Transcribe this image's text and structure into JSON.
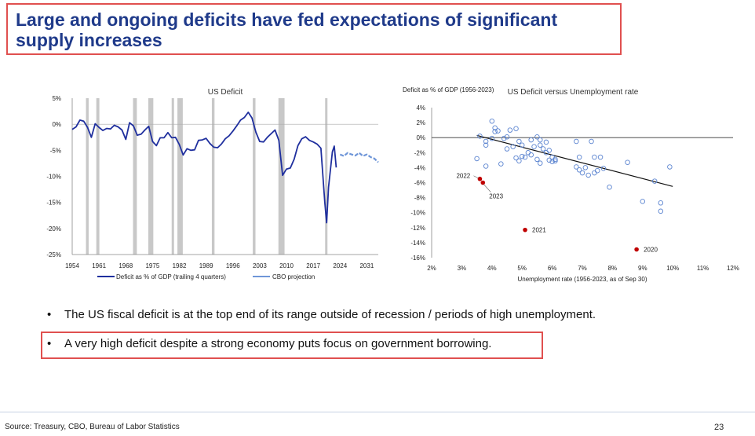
{
  "title": "Large and ongoing deficits have fed expectations of significant supply increases",
  "chart_data": [
    {
      "type": "line",
      "title": "US Deficit",
      "ylabel": "",
      "xlabel": "",
      "ylim": [
        -25,
        5
      ],
      "xlim": [
        1954,
        2034
      ],
      "yticks": [
        5,
        0,
        -5,
        -10,
        -15,
        -20,
        -25
      ],
      "yticklabels": [
        "5%",
        "0%",
        "-5%",
        "-10%",
        "-15%",
        "-20%",
        "-25%"
      ],
      "xticks": [
        1954,
        1961,
        1968,
        1975,
        1982,
        1989,
        1996,
        2003,
        2010,
        2017,
        2024,
        2031
      ],
      "xticklabels": [
        "1954",
        "1961",
        "1968",
        "1975",
        "1982",
        "1989",
        "1996",
        "2003",
        "2010",
        "2017",
        "2024",
        "2031"
      ],
      "recessions": [
        [
          1957.6,
          1958.3
        ],
        [
          1960.3,
          1961.1
        ],
        [
          1969.9,
          1970.9
        ],
        [
          1973.9,
          1975.2
        ],
        [
          1980.0,
          1980.6
        ],
        [
          1981.5,
          1982.9
        ],
        [
          1990.5,
          1991.2
        ],
        [
          2001.2,
          2001.9
        ],
        [
          2007.9,
          2009.5
        ],
        [
          2020.1,
          2020.4
        ]
      ],
      "series": [
        {
          "name": "Deficit as % of GDP (trailing 4 quarters)",
          "color": "#1f2f9e",
          "style": "solid",
          "x": [
            1954,
            1955,
            1956,
            1957,
            1958,
            1959,
            1960,
            1961,
            1962,
            1963,
            1964,
            1965,
            1966,
            1967,
            1968,
            1969,
            1970,
            1971,
            1972,
            1973,
            1974,
            1975,
            1976,
            1977,
            1978,
            1979,
            1980,
            1981,
            1982,
            1983,
            1984,
            1985,
            1986,
            1987,
            1988,
            1989,
            1990,
            1991,
            1992,
            1993,
            1994,
            1995,
            1996,
            1997,
            1998,
            1999,
            2000,
            2001,
            2002,
            2003,
            2004,
            2005,
            2006,
            2007,
            2008,
            2009,
            2010,
            2011,
            2012,
            2013,
            2014,
            2015,
            2016,
            2017,
            2018,
            2019,
            2020,
            2020.5,
            2021,
            2022,
            2022.5,
            2023
          ],
          "values": [
            -1.0,
            -0.5,
            0.8,
            0.6,
            -0.6,
            -2.5,
            0.1,
            -0.6,
            -1.2,
            -0.8,
            -0.9,
            -0.2,
            -0.5,
            -1.1,
            -2.9,
            0.3,
            -0.3,
            -2.1,
            -1.9,
            -1.1,
            -0.4,
            -3.3,
            -4.1,
            -2.6,
            -2.6,
            -1.6,
            -2.6,
            -2.5,
            -3.9,
            -5.9,
            -4.7,
            -5.0,
            -4.9,
            -3.1,
            -3.0,
            -2.7,
            -3.7,
            -4.4,
            -4.5,
            -3.8,
            -2.8,
            -2.2,
            -1.3,
            -0.3,
            0.8,
            1.3,
            2.3,
            1.2,
            -1.5,
            -3.3,
            -3.4,
            -2.5,
            -1.8,
            -1.1,
            -3.1,
            -9.8,
            -8.6,
            -8.4,
            -6.7,
            -4.1,
            -2.8,
            -2.4,
            -3.1,
            -3.4,
            -3.8,
            -4.6,
            -14.9,
            -18.9,
            -12.1,
            -5.3,
            -4.2,
            -8.3
          ]
        },
        {
          "name": "CBO projection",
          "color": "#6f96d8",
          "style": "dashed",
          "x": [
            2024,
            2025,
            2026,
            2027,
            2028,
            2029,
            2030,
            2031,
            2032,
            2033,
            2034
          ],
          "values": [
            -5.8,
            -6.1,
            -5.5,
            -5.8,
            -6.0,
            -5.5,
            -6.1,
            -5.8,
            -6.3,
            -6.6,
            -7.3
          ]
        }
      ],
      "legend": [
        "Deficit as % of GDP (trailing 4 quarters)",
        "CBO projection"
      ],
      "legend_position": "bottom"
    },
    {
      "type": "scatter",
      "title": "US Deficit versus Unemployment rate",
      "ylabel": "Deficit as % of GDP (1956-2023)",
      "xlabel": "Unemployment rate (1956-2023, as of Sep 30)",
      "xlim": [
        2,
        12
      ],
      "ylim": [
        -16,
        4
      ],
      "xticks": [
        2,
        3,
        4,
        5,
        6,
        7,
        8,
        9,
        10,
        11,
        12
      ],
      "xticklabels": [
        "2%",
        "3%",
        "4%",
        "5%",
        "6%",
        "7%",
        "8%",
        "9%",
        "10%",
        "11%",
        "12%"
      ],
      "yticks": [
        4,
        2,
        0,
        -2,
        -4,
        -6,
        -8,
        -10,
        -12,
        -14,
        -16
      ],
      "yticklabels": [
        "4%",
        "2%",
        "0%",
        "-2%",
        "-4%",
        "-6%",
        "-8%",
        "-10%",
        "-12%",
        "-14%",
        "-16%"
      ],
      "trendline": {
        "x": [
          3.5,
          10.0
        ],
        "y": [
          0.3,
          -6.5
        ]
      },
      "points": [
        {
          "x": 4.0,
          "y": 2.2
        },
        {
          "x": 4.1,
          "y": 1.3
        },
        {
          "x": 4.1,
          "y": 0.8
        },
        {
          "x": 4.2,
          "y": 0.9
        },
        {
          "x": 4.0,
          "y": -0.1
        },
        {
          "x": 4.6,
          "y": 1.0
        },
        {
          "x": 4.7,
          "y": -1.2
        },
        {
          "x": 4.8,
          "y": 1.2
        },
        {
          "x": 4.5,
          "y": 0.1
        },
        {
          "x": 3.6,
          "y": 0.2
        },
        {
          "x": 3.8,
          "y": -0.5
        },
        {
          "x": 3.8,
          "y": -1.0
        },
        {
          "x": 3.5,
          "y": -2.8
        },
        {
          "x": 3.8,
          "y": -3.8
        },
        {
          "x": 4.3,
          "y": -3.5
        },
        {
          "x": 4.5,
          "y": -1.5
        },
        {
          "x": 4.9,
          "y": -0.5
        },
        {
          "x": 5.0,
          "y": -1.0
        },
        {
          "x": 5.0,
          "y": -2.5
        },
        {
          "x": 5.1,
          "y": -2.6
        },
        {
          "x": 5.2,
          "y": -2.0
        },
        {
          "x": 5.3,
          "y": -0.3
        },
        {
          "x": 5.4,
          "y": -1.2
        },
        {
          "x": 5.5,
          "y": 0.1
        },
        {
          "x": 5.6,
          "y": -0.3
        },
        {
          "x": 5.6,
          "y": -1.0
        },
        {
          "x": 5.5,
          "y": -2.9
        },
        {
          "x": 5.6,
          "y": -3.4
        },
        {
          "x": 5.7,
          "y": -1.5
        },
        {
          "x": 5.8,
          "y": -2.0
        },
        {
          "x": 5.9,
          "y": -3.0
        },
        {
          "x": 5.8,
          "y": -0.6
        },
        {
          "x": 5.3,
          "y": -2.3
        },
        {
          "x": 4.9,
          "y": -3.1
        },
        {
          "x": 4.8,
          "y": -2.7
        },
        {
          "x": 6.0,
          "y": -2.6
        },
        {
          "x": 6.0,
          "y": -3.2
        },
        {
          "x": 6.1,
          "y": -2.9
        },
        {
          "x": 6.1,
          "y": -3.1
        },
        {
          "x": 5.9,
          "y": -1.7
        },
        {
          "x": 6.8,
          "y": -0.5
        },
        {
          "x": 6.8,
          "y": -3.9
        },
        {
          "x": 6.9,
          "y": -2.6
        },
        {
          "x": 6.9,
          "y": -4.3
        },
        {
          "x": 7.0,
          "y": -4.7
        },
        {
          "x": 7.1,
          "y": -4.0
        },
        {
          "x": 7.2,
          "y": -5.0
        },
        {
          "x": 7.3,
          "y": -0.5
        },
        {
          "x": 7.4,
          "y": -2.6
        },
        {
          "x": 7.4,
          "y": -4.7
        },
        {
          "x": 7.5,
          "y": -4.4
        },
        {
          "x": 7.6,
          "y": -2.6
        },
        {
          "x": 7.7,
          "y": -4.1
        },
        {
          "x": 7.9,
          "y": -6.6
        },
        {
          "x": 8.5,
          "y": -3.3
        },
        {
          "x": 9.0,
          "y": -8.5
        },
        {
          "x": 9.4,
          "y": -5.8
        },
        {
          "x": 9.6,
          "y": -8.7
        },
        {
          "x": 9.6,
          "y": -9.8
        },
        {
          "x": 9.9,
          "y": -3.9
        },
        {
          "x": 4.4,
          "y": -0.1
        }
      ],
      "highlights": [
        {
          "label": "2022",
          "x": 3.6,
          "y": -5.5
        },
        {
          "label": "2023",
          "x": 3.7,
          "y": -6.0
        },
        {
          "label": "2021",
          "x": 5.1,
          "y": -12.3
        },
        {
          "label": "2020",
          "x": 8.8,
          "y": -14.9
        }
      ]
    }
  ],
  "bullets": [
    "The US fiscal deficit is at the top end of its range outside of recession / periods of high unemployment.",
    "A very high deficit despite a strong economy puts focus on government borrowing."
  ],
  "bullet_symbol": "•",
  "source": "Source: Treasury, CBO, Bureau of Labor Statistics",
  "page_number": "23",
  "colors": {
    "title": "#1f3a8a",
    "highlight_box": "#e0504f",
    "recession_bar": "#c8c8c8",
    "deficit_line": "#1f2f9e",
    "cbo_line": "#6f96d8",
    "scatter_point": "#5b84d0",
    "highlight_point": "#c00000"
  }
}
